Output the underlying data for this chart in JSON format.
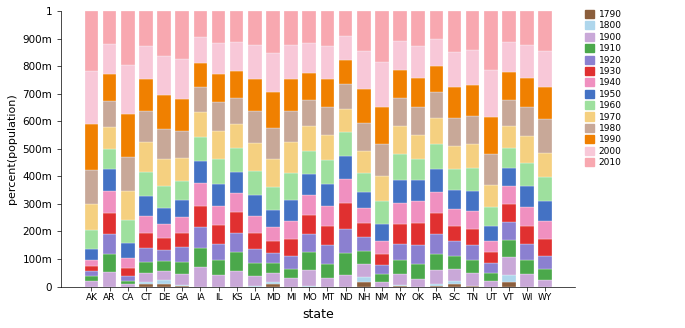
{
  "states": [
    "AK",
    "AR",
    "CA",
    "CT",
    "DE",
    "GA",
    "IA",
    "IL",
    "KS",
    "LA",
    "MD",
    "MI",
    "MO",
    "MT",
    "ND",
    "NH",
    "NM",
    "NY",
    "OK",
    "PA",
    "SC",
    "TN",
    "UT",
    "VT",
    "WI",
    "WY"
  ],
  "years": [
    "1790",
    "1800",
    "1900",
    "1910",
    "1920",
    "1930",
    "1940",
    "1950",
    "1960",
    "1970",
    "1980",
    "1990",
    "2000",
    "2010"
  ],
  "colors": {
    "1790": "#8B5E3C",
    "1800": "#AED6EC",
    "1900": "#C9A8D8",
    "1910": "#4BA84B",
    "1920": "#8B80D0",
    "1930": "#E03030",
    "1940": "#F090C0",
    "1950": "#4472C4",
    "1960": "#9EE09E",
    "1970": "#F5D080",
    "1980": "#C8A898",
    "1990": "#F08000",
    "2000": "#F8C8D8",
    "2010": "#F8A8B0"
  },
  "ylabel": "percent(population)",
  "xlabel": "state",
  "ytick_labels": [
    "0",
    "100m",
    "200m",
    "300m",
    "400m",
    "500m",
    "600m",
    "700m",
    "800m",
    "900m",
    "1"
  ],
  "raw_data": {
    "AK": {
      "1790": 0,
      "1800": 0,
      "1900": 64356,
      "1910": 64356,
      "1920": 55036,
      "1930": 59278,
      "1940": 72524,
      "1950": 128643,
      "1960": 226167,
      "1970": 302583,
      "1980": 401851,
      "1990": 550043,
      "2000": 626932,
      "2010": 710231
    },
    "AR": {
      "1790": 0,
      "1800": 1062,
      "1900": 1311564,
      "1910": 1574449,
      "1920": 1752204,
      "1930": 1854482,
      "1940": 1949387,
      "1950": 1909511,
      "1960": 1786272,
      "1970": 1923295,
      "1980": 2286435,
      "1990": 2350725,
      "2000": 2673400,
      "2010": 2915918
    },
    "CA": {
      "1790": 0,
      "1800": 0,
      "1900": 1485053,
      "1910": 2377549,
      "1920": 3426861,
      "1930": 5677251,
      "1940": 6907387,
      "1950": 10586223,
      "1960": 15717204,
      "1970": 19953134,
      "1980": 23667902,
      "1990": 29760021,
      "2000": 33871648,
      "2010": 37253956
    },
    "CT": {
      "1790": 237946,
      "1800": 251002,
      "1900": 908420,
      "1910": 1114756,
      "1920": 1380631,
      "1930": 1606903,
      "1940": 1709242,
      "1950": 2007280,
      "1960": 2535234,
      "1970": 3032217,
      "1980": 3107576,
      "1990": 3287116,
      "2000": 3405565,
      "2010": 3574097
    },
    "DE": {
      "1790": 59094,
      "1800": 64273,
      "1900": 184735,
      "1910": 202322,
      "1920": 223003,
      "1930": 238380,
      "1940": 266505,
      "1950": 318085,
      "1960": 446292,
      "1970": 548104,
      "1980": 594338,
      "1990": 666168,
      "2000": 783600,
      "2010": 897934
    },
    "GA": {
      "1790": 82548,
      "1800": 162686,
      "1900": 2216331,
      "1910": 2609121,
      "1920": 2895832,
      "1930": 2908506,
      "1940": 3123723,
      "1950": 3444578,
      "1960": 3943116,
      "1970": 4589575,
      "1980": 5463105,
      "1990": 6478216,
      "2000": 8186453,
      "2010": 9687653
    },
    "IA": {
      "1790": 0,
      "1800": 0,
      "1900": 2231853,
      "1910": 2224771,
      "1920": 2404021,
      "1930": 2470939,
      "1940": 2538268,
      "1950": 2621073,
      "1960": 2757537,
      "1970": 2824376,
      "1980": 2913808,
      "1990": 2776755,
      "2000": 2926324,
      "2010": 3046355
    },
    "IL": {
      "1790": 0,
      "1800": 0,
      "1900": 4821550,
      "1910": 5638591,
      "1920": 6485280,
      "1930": 7630654,
      "1940": 7897241,
      "1950": 8712176,
      "1960": 10081158,
      "1970": 11113976,
      "1980": 11426518,
      "1990": 11430602,
      "2000": 12419293,
      "2010": 12830632
    },
    "KS": {
      "1790": 0,
      "1800": 0,
      "1900": 1470495,
      "1910": 1690949,
      "1920": 1769257,
      "1930": 1880999,
      "1940": 1801028,
      "1950": 1905299,
      "1960": 2178611,
      "1970": 2249071,
      "1980": 2363679,
      "1990": 2477574,
      "2000": 2688418,
      "2010": 2853118
    },
    "LA": {
      "1790": 0,
      "1800": 76556,
      "1900": 1381625,
      "1910": 1656388,
      "1920": 1798509,
      "1930": 2101593,
      "1940": 2363880,
      "1950": 2683516,
      "1960": 3257022,
      "1970": 3641306,
      "1980": 4205900,
      "1990": 4219973,
      "2000": 4468976,
      "2010": 4533372
    },
    "MD": {
      "1790": 319728,
      "1800": 341548,
      "1900": 1188044,
      "1910": 1295346,
      "1920": 1449661,
      "1930": 1631526,
      "1940": 1821244,
      "1950": 2343001,
      "1960": 3100689,
      "1970": 3922399,
      "1980": 4216975,
      "1990": 4781468,
      "2000": 5296486,
      "2010": 5773552
    },
    "MI": {
      "1790": 0,
      "1800": 0,
      "1900": 2420982,
      "1910": 2810173,
      "1920": 3668412,
      "1930": 4842325,
      "1940": 5256106,
      "1950": 6371766,
      "1960": 7823194,
      "1970": 8875083,
      "1980": 9262078,
      "1990": 9295297,
      "2000": 9938444,
      "2010": 9883640
    },
    "MO": {
      "1790": 0,
      "1800": 20845,
      "1900": 3106665,
      "1910": 3293335,
      "1920": 3404055,
      "1930": 3629367,
      "1940": 3784664,
      "1950": 3954653,
      "1960": 4319813,
      "1970": 4677399,
      "1980": 4916686,
      "1990": 5117073,
      "2000": 5595211,
      "2010": 5988927
    },
    "MT": {
      "1790": 0,
      "1800": 0,
      "1900": 243329,
      "1910": 376053,
      "1920": 548889,
      "1930": 537606,
      "1940": 559456,
      "1950": 591024,
      "1960": 674767,
      "1970": 694409,
      "1980": 786690,
      "1990": 799065,
      "2000": 902195,
      "2010": 989415
    },
    "ND": {
      "1790": 0,
      "1800": 0,
      "1900": 319146,
      "1910": 577056,
      "1920": 646872,
      "1930": 680845,
      "1940": 641935,
      "1950": 619636,
      "1960": 632446,
      "1970": 617761,
      "1980": 652717,
      "1990": 638800,
      "2000": 642200,
      "2010": 672591
    },
    "NH": {
      "1790": 141885,
      "1800": 183858,
      "1900": 411588,
      "1910": 430572,
      "1920": 443083,
      "1930": 465293,
      "1940": 491524,
      "1950": 533242,
      "1960": 606921,
      "1970": 737681,
      "1980": 920610,
      "1990": 1109252,
      "2000": 1235786,
      "2010": 1316470
    },
    "NM": {
      "1790": 0,
      "1800": 0,
      "1900": 195310,
      "1910": 327301,
      "1920": 360350,
      "1930": 423317,
      "1940": 531818,
      "1950": 681187,
      "1960": 951023,
      "1970": 1016000,
      "1980": 1302894,
      "1990": 1515069,
      "2000": 1819046,
      "2010": 2059179
    },
    "NY": {
      "1790": 340120,
      "1800": 589051,
      "1900": 7268894,
      "1910": 9113614,
      "1920": 10385227,
      "1930": 12588066,
      "1940": 13479142,
      "1950": 14830192,
      "1960": 16782304,
      "1970": 18236967,
      "1980": 17558072,
      "1990": 17990455,
      "2000": 18976457,
      "2010": 19378102
    },
    "OK": {
      "1790": 0,
      "1800": 0,
      "1900": 790391,
      "1910": 1657155,
      "1920": 2028283,
      "1930": 2396040,
      "1940": 2336434,
      "1950": 2233351,
      "1960": 2328284,
      "1970": 2559229,
      "1980": 3025290,
      "1990": 3145585,
      "2000": 3450654,
      "2010": 3751351
    },
    "PA": {
      "1790": 434373,
      "1800": 602365,
      "1900": 6302115,
      "1910": 7665111,
      "1920": 8720017,
      "1930": 9631350,
      "1940": 9900180,
      "1950": 10498012,
      "1960": 11319366,
      "1970": 11793909,
      "1980": 11863895,
      "1990": 11881643,
      "2000": 12281054,
      "2010": 12702379
    },
    "SC": {
      "1790": 249073,
      "1800": 345591,
      "1900": 1340316,
      "1910": 1515400,
      "1920": 1683724,
      "1930": 1738765,
      "1940": 1899804,
      "1950": 2117027,
      "1960": 2382594,
      "1970": 2590516,
      "1980": 3121820,
      "1990": 3486703,
      "2000": 4012012,
      "2010": 4625364
    },
    "TN": {
      "1790": 35691,
      "1800": 105602,
      "1900": 2020616,
      "1910": 2184789,
      "1920": 2337885,
      "1930": 2616556,
      "1940": 2915841,
      "1950": 3291718,
      "1960": 3567089,
      "1970": 3923687,
      "1980": 4591120,
      "1990": 4877185,
      "2000": 5689283,
      "2010": 6346105
    },
    "UT": {
      "1790": 0,
      "1800": 0,
      "1900": 276749,
      "1910": 373351,
      "1920": 449396,
      "1930": 507847,
      "1940": 550310,
      "1950": 688862,
      "1960": 890627,
      "1970": 1059273,
      "1980": 1461037,
      "1990": 1722850,
      "2000": 2233169,
      "2010": 2763885
    },
    "VT": {
      "1790": 85425,
      "1800": 154465,
      "1900": 343641,
      "1910": 355956,
      "1920": 352428,
      "1930": 359611,
      "1940": 359231,
      "1950": 377747,
      "1960": 389881,
      "1970": 444330,
      "1980": 511456,
      "1990": 562758,
      "2000": 608827,
      "2010": 625741
    },
    "WI": {
      "1790": 0,
      "1800": 0,
      "1900": 2069042,
      "1910": 2333860,
      "1920": 2632067,
      "1930": 2939006,
      "1940": 3137587,
      "1950": 3434575,
      "1960": 3951777,
      "1970": 4417933,
      "1980": 4705767,
      "1990": 4891769,
      "2000": 5363675,
      "2010": 5686986
    },
    "WY": {
      "1790": 0,
      "1800": 0,
      "1900": 92531,
      "1910": 145965,
      "1920": 194402,
      "1930": 225565,
      "1940": 250742,
      "1950": 290529,
      "1960": 330066,
      "1970": 332416,
      "1980": 469557,
      "1990": 453588,
      "2000": 493782,
      "2010": 563626
    }
  }
}
